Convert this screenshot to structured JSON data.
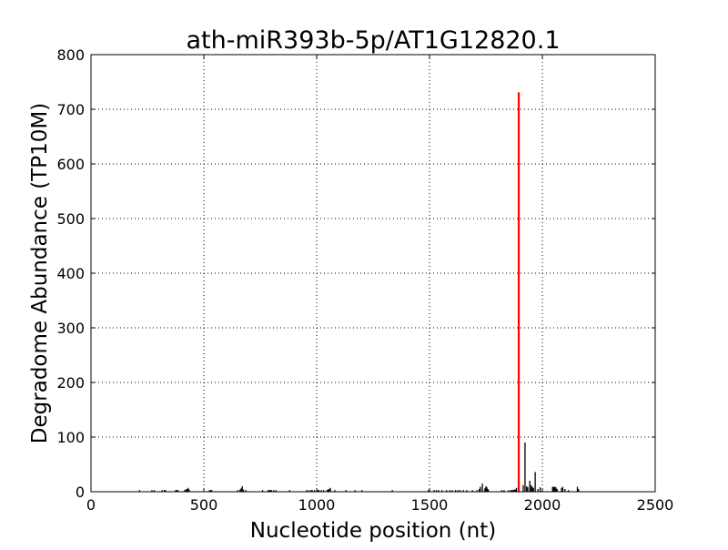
{
  "chart_data": {
    "type": "bar",
    "title": "ath-miR393b-5p/AT1G12820.1",
    "xlabel": "Nucleotide position (nt)",
    "ylabel": "Degradome Abundance (TP10M)",
    "xlim": [
      0,
      2500
    ],
    "ylim": [
      0,
      800
    ],
    "xticks": [
      "0",
      "500",
      "1000",
      "1500",
      "2000",
      "2500"
    ],
    "yticks": [
      "0",
      "100",
      "200",
      "300",
      "400",
      "500",
      "600",
      "700",
      "800"
    ],
    "grid": true,
    "highlight_color": "#ff0000",
    "bar_color": "#000000",
    "highlight": {
      "x": 1895,
      "y": 731
    },
    "series": [
      {
        "x": [
          215,
          270,
          280,
          315,
          325,
          330,
          375,
          380,
          385,
          415,
          420,
          425,
          430,
          435,
          525,
          530,
          535,
          650,
          660,
          665,
          670,
          675,
          685,
          760,
          785,
          790,
          795,
          800,
          810,
          820,
          880,
          955,
          965,
          975,
          980,
          990,
          1005,
          1010,
          1020,
          1030,
          1045,
          1050,
          1055,
          1060,
          1080,
          1130,
          1170,
          1200,
          1335,
          1495,
          1520,
          1530,
          1540,
          1555,
          1575,
          1590,
          1600,
          1615,
          1625,
          1635,
          1650,
          1665,
          1690,
          1710,
          1720,
          1725,
          1734,
          1745,
          1750,
          1754,
          1758,
          1760,
          1820,
          1830,
          1850,
          1860,
          1865,
          1870,
          1875,
          1880,
          1885,
          1915,
          1923,
          1930,
          1935,
          1944,
          1950,
          1955,
          1960,
          1968,
          1980,
          1990,
          2045,
          2050,
          2055,
          2060,
          2065,
          2085,
          2090,
          2100,
          2115,
          2155,
          2160
        ],
        "y": [
          3,
          3,
          3,
          3,
          3,
          3,
          3,
          3,
          3,
          3,
          4,
          5,
          7,
          4,
          3,
          3,
          3,
          3,
          4,
          6,
          10,
          4,
          3,
          3,
          3,
          3,
          3,
          3,
          3,
          3,
          3,
          3,
          3,
          3,
          3,
          3,
          3,
          3,
          3,
          3,
          3,
          4,
          5,
          7,
          3,
          3,
          3,
          3,
          3,
          3,
          3,
          3,
          3,
          3,
          3,
          3,
          3,
          3,
          3,
          3,
          3,
          3,
          3,
          3,
          5,
          9,
          15,
          6,
          10,
          8,
          5,
          4,
          3,
          3,
          3,
          3,
          3,
          3,
          4,
          4,
          7,
          12,
          90,
          10,
          8,
          20,
          12,
          9,
          7,
          36,
          5,
          8,
          9,
          9,
          9,
          8,
          5,
          7,
          9,
          5,
          3,
          9,
          5
        ]
      }
    ]
  }
}
